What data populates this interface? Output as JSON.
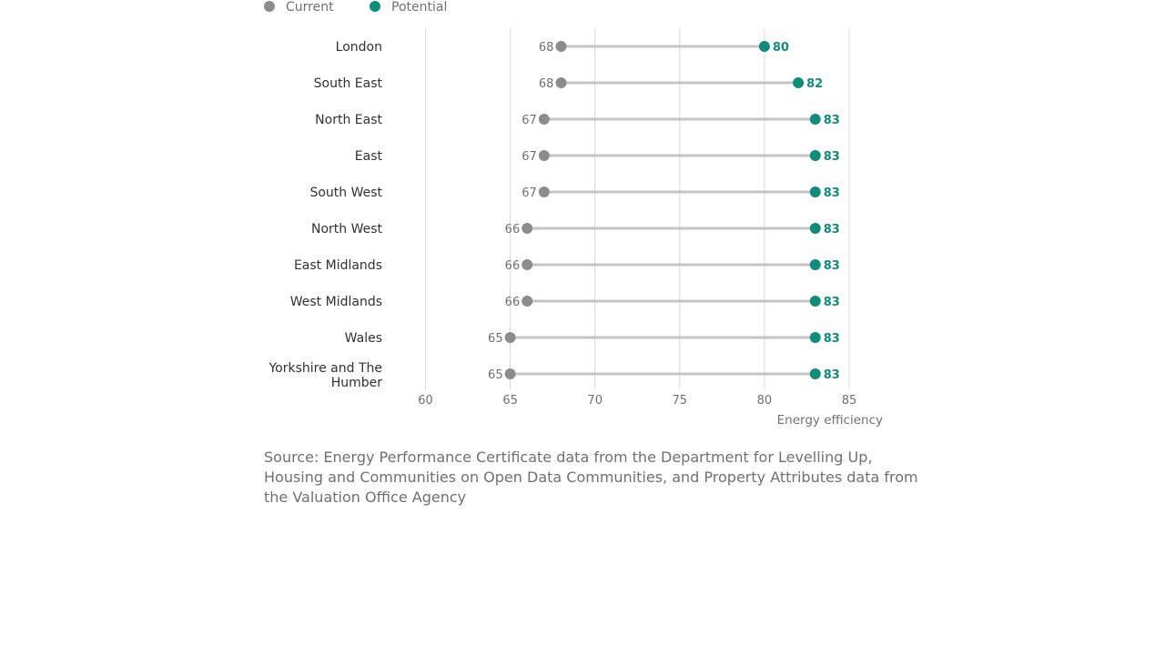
{
  "chart_data": {
    "type": "dumbbell",
    "categories": [
      "London",
      "South East",
      "North East",
      "East",
      "South West",
      "North West",
      "East Midlands",
      "West Midlands",
      "Wales",
      "Yorkshire and The Humber"
    ],
    "series": [
      {
        "name": "Current",
        "color": "#8c8c8c",
        "values": [
          68,
          68,
          67,
          67,
          67,
          66,
          66,
          66,
          65,
          65
        ]
      },
      {
        "name": "Potential",
        "color": "#118c7b",
        "values": [
          80,
          82,
          83,
          83,
          83,
          83,
          83,
          83,
          83,
          83
        ]
      }
    ],
    "xlabel": "Energy efficiency",
    "xlim": [
      60,
      85
    ],
    "xticks": [
      60,
      65,
      70,
      75,
      80,
      85
    ],
    "grid": true,
    "legend_position": "top-left"
  },
  "source": "Source: Energy Performance Certificate data from the Department for Levelling Up, Housing and Communities on Open Data Communities, and Property Attributes data from the Valuation Office Agency"
}
